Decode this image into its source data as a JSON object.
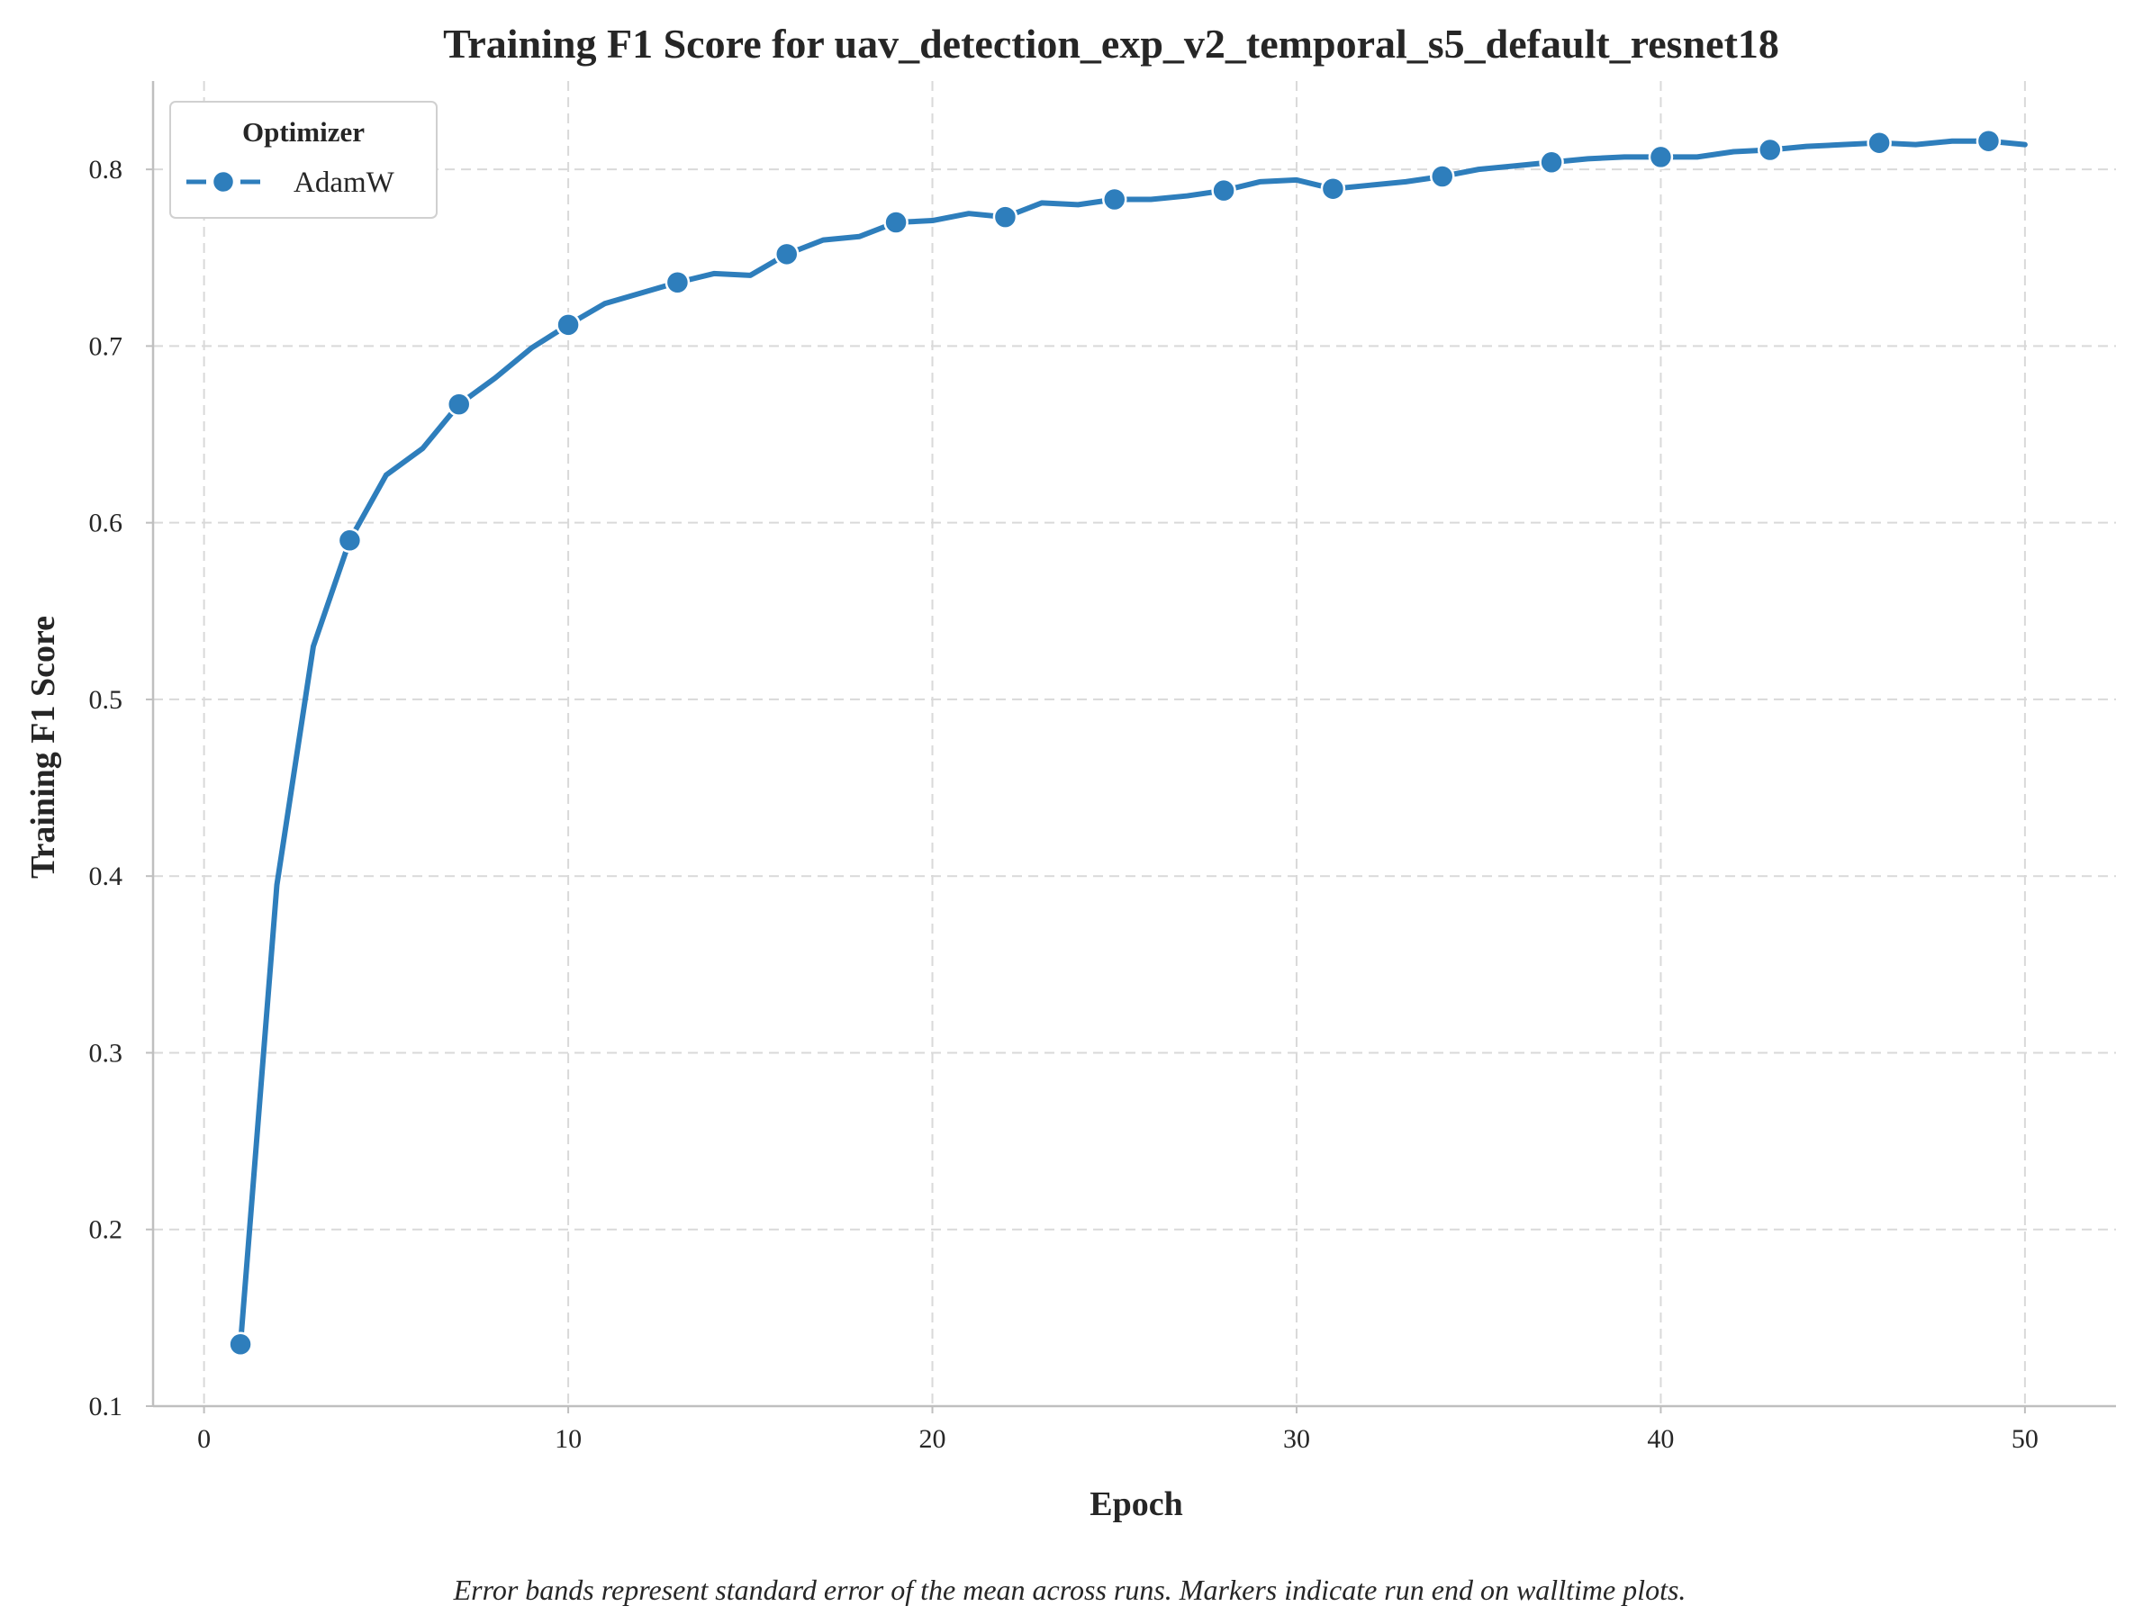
{
  "chart_data": {
    "type": "line",
    "title": "Training F1 Score for uav_detection_exp_v2_temporal_s5_default_resnet18",
    "xlabel": "Epoch",
    "ylabel": "Training F1 Score",
    "xlim": [
      -1.4,
      52.5
    ],
    "ylim": [
      0.1,
      0.85
    ],
    "xticks": [
      "0",
      "10",
      "20",
      "30",
      "40",
      "50"
    ],
    "yticks": [
      "0.1",
      "0.2",
      "0.3",
      "0.4",
      "0.5",
      "0.6",
      "0.7",
      "0.8"
    ],
    "grid": true,
    "legend": {
      "title": "Optimizer",
      "position": "top-left"
    },
    "caption": "Error bands represent standard error of the mean across runs. Markers indicate run end on walltime plots.",
    "series": [
      {
        "name": "AdamW",
        "color": "#2e7ebc",
        "marker_every": 3,
        "x": [
          1,
          2,
          3,
          4,
          5,
          6,
          7,
          8,
          9,
          10,
          11,
          12,
          13,
          14,
          15,
          16,
          17,
          18,
          19,
          20,
          21,
          22,
          23,
          24,
          25,
          26,
          27,
          28,
          29,
          30,
          31,
          32,
          33,
          34,
          35,
          36,
          37,
          38,
          39,
          40,
          41,
          42,
          43,
          44,
          45,
          46,
          47,
          48,
          49,
          50
        ],
        "y": [
          0.135,
          0.395,
          0.53,
          0.59,
          0.627,
          0.642,
          0.667,
          0.682,
          0.699,
          0.712,
          0.724,
          0.73,
          0.736,
          0.741,
          0.74,
          0.752,
          0.76,
          0.762,
          0.77,
          0.771,
          0.775,
          0.773,
          0.781,
          0.78,
          0.783,
          0.783,
          0.785,
          0.788,
          0.793,
          0.794,
          0.789,
          0.791,
          0.793,
          0.796,
          0.8,
          0.802,
          0.804,
          0.806,
          0.807,
          0.807,
          0.807,
          0.81,
          0.811,
          0.813,
          0.814,
          0.815,
          0.814,
          0.816,
          0.816,
          0.814
        ]
      }
    ]
  }
}
